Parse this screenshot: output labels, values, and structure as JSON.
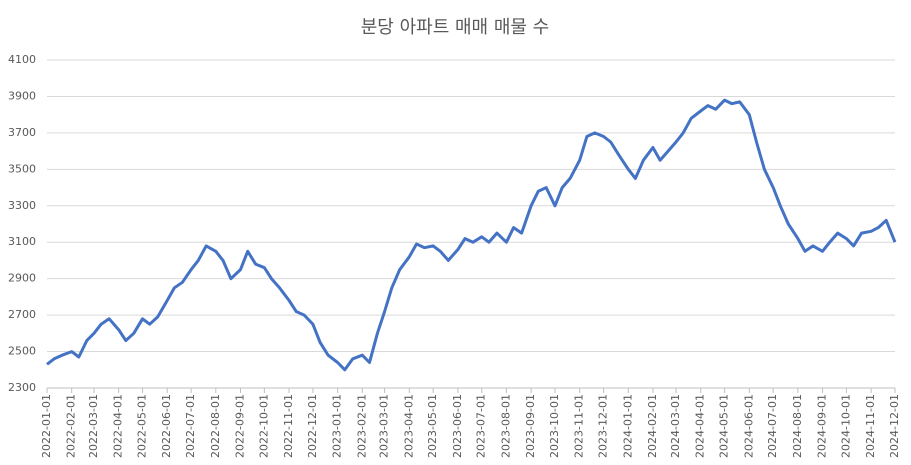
{
  "chart_data": {
    "type": "line",
    "title": "분당 아파트 매매 매물 수",
    "x": [
      "2022-01-01",
      "2022-01-10",
      "2022-01-20",
      "2022-02-01",
      "2022-02-10",
      "2022-02-20",
      "2022-03-01",
      "2022-03-10",
      "2022-03-20",
      "2022-04-01",
      "2022-04-10",
      "2022-04-20",
      "2022-05-01",
      "2022-05-10",
      "2022-05-20",
      "2022-06-01",
      "2022-06-10",
      "2022-06-20",
      "2022-07-01",
      "2022-07-10",
      "2022-07-20",
      "2022-08-01",
      "2022-08-10",
      "2022-08-20",
      "2022-09-01",
      "2022-09-10",
      "2022-09-20",
      "2022-10-01",
      "2022-10-10",
      "2022-10-20",
      "2022-11-01",
      "2022-11-10",
      "2022-11-20",
      "2022-12-01",
      "2022-12-10",
      "2022-12-20",
      "2023-01-01",
      "2023-01-10",
      "2023-01-20",
      "2023-02-01",
      "2023-02-10",
      "2023-02-20",
      "2023-03-01",
      "2023-03-10",
      "2023-03-20",
      "2023-04-01",
      "2023-04-10",
      "2023-04-20",
      "2023-05-01",
      "2023-05-10",
      "2023-05-20",
      "2023-06-01",
      "2023-06-10",
      "2023-06-20",
      "2023-07-01",
      "2023-07-10",
      "2023-07-20",
      "2023-08-01",
      "2023-08-10",
      "2023-08-20",
      "2023-09-01",
      "2023-09-10",
      "2023-09-20",
      "2023-10-01",
      "2023-10-10",
      "2023-10-20",
      "2023-11-01",
      "2023-11-10",
      "2023-11-20",
      "2023-12-01",
      "2023-12-10",
      "2023-12-20",
      "2024-01-01",
      "2024-01-10",
      "2024-01-20",
      "2024-02-01",
      "2024-02-10",
      "2024-02-20",
      "2024-03-01",
      "2024-03-10",
      "2024-03-20",
      "2024-04-01",
      "2024-04-10",
      "2024-04-20",
      "2024-05-01",
      "2024-05-10",
      "2024-05-20",
      "2024-06-01",
      "2024-06-10",
      "2024-06-20",
      "2024-07-01",
      "2024-07-10",
      "2024-07-20",
      "2024-08-01",
      "2024-08-10",
      "2024-08-20",
      "2024-09-01",
      "2024-09-10",
      "2024-09-20",
      "2024-10-01",
      "2024-10-10",
      "2024-10-20",
      "2024-11-01",
      "2024-11-10",
      "2024-11-20",
      "2024-12-01"
    ],
    "series": [
      {
        "name": "매물 수",
        "color": "#4472c4",
        "values": [
          2430,
          2460,
          2480,
          2500,
          2470,
          2560,
          2600,
          2650,
          2680,
          2620,
          2560,
          2600,
          2680,
          2650,
          2690,
          2780,
          2850,
          2880,
          2950,
          3000,
          3080,
          3050,
          3000,
          2900,
          2950,
          3050,
          2980,
          2960,
          2900,
          2850,
          2780,
          2720,
          2700,
          2650,
          2550,
          2480,
          2440,
          2400,
          2460,
          2480,
          2440,
          2600,
          2720,
          2850,
          2950,
          3020,
          3090,
          3070,
          3080,
          3050,
          3000,
          3060,
          3120,
          3100,
          3130,
          3100,
          3150,
          3100,
          3180,
          3150,
          3300,
          3380,
          3400,
          3300,
          3400,
          3450,
          3550,
          3680,
          3700,
          3680,
          3650,
          3580,
          3500,
          3450,
          3550,
          3620,
          3550,
          3600,
          3650,
          3700,
          3780,
          3820,
          3850,
          3830,
          3880,
          3860,
          3870,
          3800,
          3650,
          3500,
          3400,
          3300,
          3200,
          3120,
          3050,
          3080,
          3050,
          3100,
          3150,
          3120,
          3080,
          3150,
          3160,
          3180,
          3220,
          3100
        ]
      }
    ],
    "xlim": [
      "2022-01-01",
      "2024-12-01"
    ],
    "xticks": [
      "2022-01-01",
      "2022-02-01",
      "2022-03-01",
      "2022-04-01",
      "2022-05-01",
      "2022-06-01",
      "2022-07-01",
      "2022-08-01",
      "2022-09-01",
      "2022-10-01",
      "2022-11-01",
      "2022-12-01",
      "2023-01-01",
      "2023-02-01",
      "2023-03-01",
      "2023-04-01",
      "2023-05-01",
      "2023-06-01",
      "2023-07-01",
      "2023-08-01",
      "2023-09-01",
      "2023-10-01",
      "2023-11-01",
      "2023-12-01",
      "2024-01-01",
      "2024-02-01",
      "2024-03-01",
      "2024-04-01",
      "2024-05-01",
      "2024-06-01",
      "2024-07-01",
      "2024-08-01",
      "2024-09-01",
      "2024-10-01",
      "2024-11-01",
      "2024-12-01"
    ],
    "ylim": [
      2300,
      4100
    ],
    "yticks": [
      2300,
      2500,
      2700,
      2900,
      3100,
      3300,
      3500,
      3700,
      3900,
      4100
    ],
    "grid": true
  }
}
